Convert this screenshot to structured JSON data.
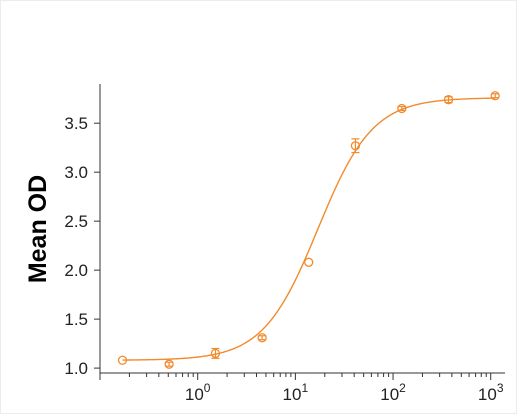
{
  "chart_data": {
    "type": "scatter",
    "title": "",
    "xlabel": "",
    "ylabel": "Mean OD",
    "x_scale": "log",
    "xlim": [
      0.1,
      1400
    ],
    "ylim": [
      0.95,
      3.9
    ],
    "x_ticks": [
      {
        "value": 1,
        "base": "10",
        "exp": "0"
      },
      {
        "value": 10,
        "base": "10",
        "exp": "1"
      },
      {
        "value": 100,
        "base": "10",
        "exp": "2"
      },
      {
        "value": 1000,
        "base": "10",
        "exp": "3"
      }
    ],
    "y_ticks": [
      1.0,
      1.5,
      2.0,
      2.5,
      3.0,
      3.5
    ],
    "y_tick_labels": [
      "1.0",
      "1.5",
      "2.0",
      "2.5",
      "3.0",
      "3.5"
    ],
    "grid": false,
    "color": "#f28a2e",
    "series": [
      {
        "points": [
          {
            "x": 0.17,
            "y": 1.08,
            "err": 0.0
          },
          {
            "x": 0.51,
            "y": 1.04,
            "err": 0.02
          },
          {
            "x": 1.52,
            "y": 1.15,
            "err": 0.05
          },
          {
            "x": 4.57,
            "y": 1.31,
            "err": 0.02
          },
          {
            "x": 13.7,
            "y": 2.08,
            "err": 0.0
          },
          {
            "x": 41.2,
            "y": 3.27,
            "err": 0.07
          },
          {
            "x": 123,
            "y": 3.65,
            "err": 0.02
          },
          {
            "x": 370,
            "y": 3.74,
            "err": 0.03
          },
          {
            "x": 1110,
            "y": 3.78,
            "err": 0.02
          }
        ],
        "fit": {
          "model": "4PL",
          "bottom": 1.08,
          "top": 3.76,
          "ec50": 17,
          "hill": 1.55
        }
      }
    ]
  }
}
